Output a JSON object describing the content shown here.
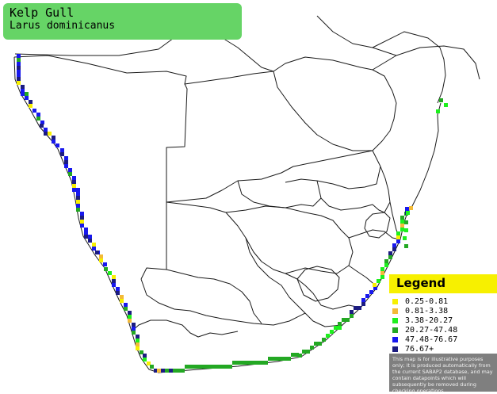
{
  "species": {
    "common_name": "Kelp Gull",
    "scientific_name": "Larus dominicanus"
  },
  "legend": {
    "title": "Legend",
    "entries": [
      {
        "label": "0.25-0.81",
        "color": "#f7f000"
      },
      {
        "label": "0.81-3.38",
        "color": "#f3ba38"
      },
      {
        "label": "3.38-20.27",
        "color": "#1df01d"
      },
      {
        "label": "20.27-47.48",
        "color": "#23a823"
      },
      {
        "label": "47.48-76.67",
        "color": "#1818ee"
      },
      {
        "label": "76.67+",
        "color": "#1c1c80"
      }
    ],
    "disclaimer": "This map is for illustrative purposes only; it is produced automatically from the current SABAP2 database, and may contain datapoints which will subsequently be removed during checking operations."
  },
  "colors": {
    "title_background": "#66d466",
    "legend_header": "#f7f000",
    "disclaimer_background": "#7f7f7f",
    "border_line": "#1a1a1a"
  }
}
